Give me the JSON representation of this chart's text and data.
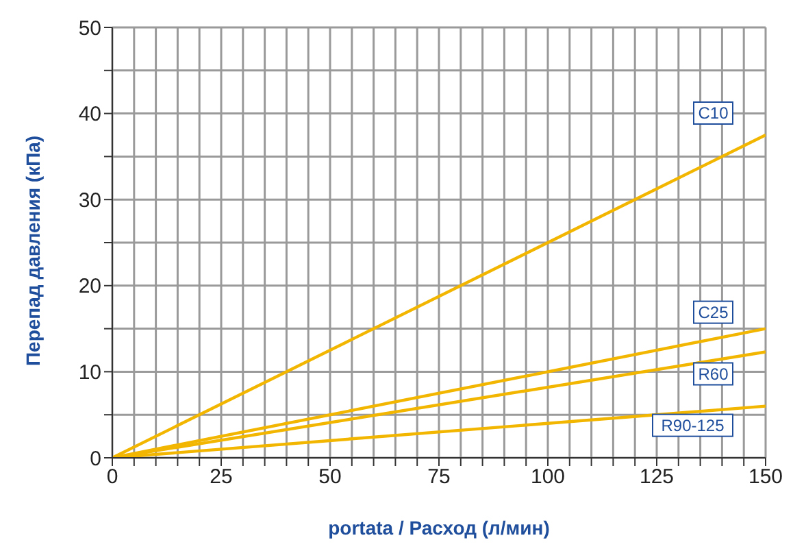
{
  "chart_data": {
    "type": "line",
    "xlabel": "portata / Расход (л/мин)",
    "ylabel": "Перепад давления (кПа)",
    "x": [
      0,
      150
    ],
    "series": [
      {
        "name": "C10",
        "color": "#f2b600",
        "values": [
          0,
          37.5
        ]
      },
      {
        "name": "C25",
        "color": "#f2b600",
        "values": [
          0,
          15
        ]
      },
      {
        "name": "R60",
        "color": "#f2b600",
        "values": [
          0,
          12.3
        ]
      },
      {
        "name": "R90-125",
        "color": "#f2b600",
        "values": [
          0,
          6
        ]
      }
    ],
    "xlim": [
      0,
      150
    ],
    "ylim": [
      0,
      50
    ],
    "xticks": [
      0,
      {
        "value": 5,
        "label": null
      },
      {
        "value": 10,
        "label": null
      },
      {
        "value": 15,
        "label": null
      },
      {
        "value": 20,
        "label": null
      },
      25,
      {
        "value": 30,
        "label": null
      },
      {
        "value": 35,
        "label": null
      },
      {
        "value": 40,
        "label": null
      },
      {
        "value": 45,
        "label": null
      },
      50,
      {
        "value": 55,
        "label": null
      },
      {
        "value": 60,
        "label": null
      },
      {
        "value": 65,
        "label": null
      },
      {
        "value": 70,
        "label": null
      },
      75,
      {
        "value": 80,
        "label": null
      },
      {
        "value": 85,
        "label": null
      },
      {
        "value": 90,
        "label": null
      },
      {
        "value": 95,
        "label": null
      },
      100,
      {
        "value": 105,
        "label": null
      },
      {
        "value": 110,
        "label": null
      },
      {
        "value": 115,
        "label": null
      },
      {
        "value": 120,
        "label": null
      },
      125,
      {
        "value": 130,
        "label": null
      },
      {
        "value": 135,
        "label": null
      },
      {
        "value": 140,
        "label": null
      },
      {
        "value": 145,
        "label": null
      },
      150
    ],
    "yticks": [
      0,
      {
        "value": 5,
        "label": null
      },
      10,
      {
        "value": 15,
        "label": null
      },
      20,
      {
        "value": 25,
        "label": null
      },
      30,
      {
        "value": 35,
        "label": null
      },
      40,
      {
        "value": 45,
        "label": null
      },
      50
    ],
    "grid": true,
    "legend": false,
    "marker": "none",
    "line_style": "solid"
  }
}
